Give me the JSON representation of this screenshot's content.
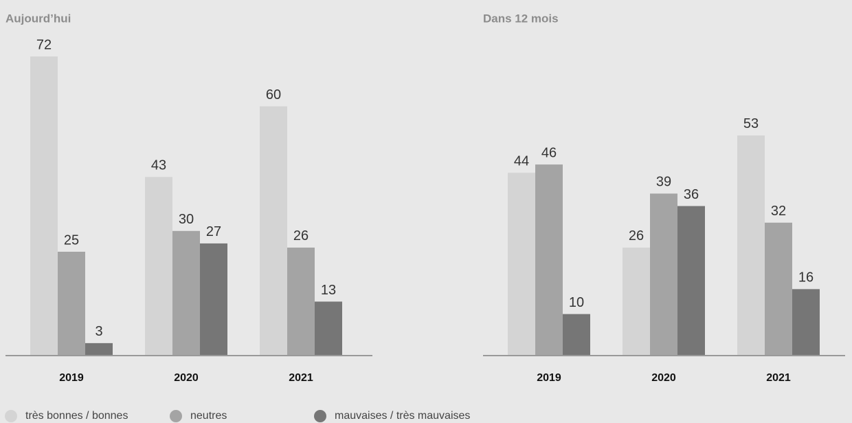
{
  "chart_data": [
    {
      "type": "bar",
      "title": "Aujourd’hui",
      "categories": [
        "2019",
        "2020",
        "2021"
      ],
      "series": [
        {
          "name": "très bonnes / bonnes",
          "color": "#d4d4d4",
          "values": [
            72,
            43,
            60
          ]
        },
        {
          "name": "neutres",
          "color": "#a4a4a4",
          "values": [
            25,
            30,
            26
          ]
        },
        {
          "name": "mauvaises / très mauvaises",
          "color": "#767676",
          "values": [
            3,
            27,
            13
          ]
        }
      ]
    },
    {
      "type": "bar",
      "title": "Dans 12 mois",
      "categories": [
        "2019",
        "2020",
        "2021"
      ],
      "series": [
        {
          "color": "#d4d4d4",
          "values": [
            44,
            26,
            53
          ]
        },
        {
          "color": "#a4a4a4",
          "values": [
            46,
            39,
            32
          ]
        },
        {
          "color": "#767676",
          "values": [
            10,
            36,
            16
          ]
        }
      ]
    }
  ]
}
